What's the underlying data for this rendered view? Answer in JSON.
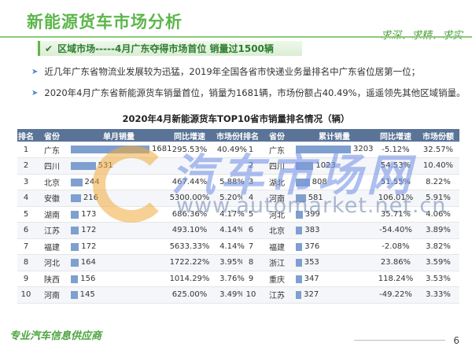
{
  "page": {
    "title": "新能源货车市场分析",
    "slogan": "求深、求精、求实",
    "section_title": "区域市场-----4月广东夺得市场首位 销量过1500辆",
    "section_icon": "check-icon",
    "bullets": [
      "近几年广东省物流业发展较为迅猛，2019年全国各省市快递业务量排名中广东省位居第一位；",
      "2020年4月广东省新能源货车销量首位，销量为1681辆，市场份额占40.49%，遥遥领先其他区域销量。"
    ],
    "footer_brand": "专业汽车信息供应商",
    "page_number": "6"
  },
  "watermark": {
    "name": "汽车市场网",
    "url": "www.automarket.net.cn",
    "logo_color": "#f0aa3c"
  },
  "colors": {
    "accent_green": "#5cb64a",
    "table_header": "#5a7396",
    "bar": "#7f9fcf"
  },
  "chart_data": {
    "type": "table",
    "title": "2020年4月新能源货车TOP10省市销量排名情况（辆）",
    "monthly": {
      "headers": [
        "排名",
        "省份",
        "单月销量",
        "同比增速",
        "市场份额"
      ],
      "rows": [
        {
          "rank": "1",
          "province": "广东",
          "sales": 1681,
          "growth": "295.53%",
          "share": "40.49%"
        },
        {
          "rank": "2",
          "province": "四川",
          "sales": 531,
          "growth": "",
          "share": ""
        },
        {
          "rank": "3",
          "province": "北京",
          "sales": 244,
          "growth": "467.44%",
          "share": "5.88%"
        },
        {
          "rank": "4",
          "province": "安徽",
          "sales": 216,
          "growth": "5300.00%",
          "share": "5.20%"
        },
        {
          "rank": "5",
          "province": "湖南",
          "sales": 173,
          "growth": "686.36%",
          "share": "4.17%"
        },
        {
          "rank": "6",
          "province": "江苏",
          "sales": 172,
          "growth": "493.10%",
          "share": "4.14%"
        },
        {
          "rank": "7",
          "province": "福建",
          "sales": 172,
          "growth": "5633.33%",
          "share": "4.14%"
        },
        {
          "rank": "8",
          "province": "河北",
          "sales": 164,
          "growth": "1722.22%",
          "share": "3.95%"
        },
        {
          "rank": "9",
          "province": "陕西",
          "sales": 156,
          "growth": "1014.29%",
          "share": "3.76%"
        },
        {
          "rank": "10",
          "province": "河南",
          "sales": 145,
          "growth": "625.00%",
          "share": "3.49%"
        }
      ]
    },
    "cumulative": {
      "headers": [
        "排名",
        "省份",
        "累计销量",
        "同比增速",
        "市场份额"
      ],
      "rows": [
        {
          "rank": "1",
          "province": "广东",
          "sales": 3203,
          "growth": "-5.12%",
          "share": "32.57%"
        },
        {
          "rank": "2",
          "province": "四川",
          "sales": 1023,
          "growth": "54.53%",
          "share": "10.40%"
        },
        {
          "rank": "3",
          "province": "湖北",
          "sales": 808,
          "growth": "51.55%",
          "share": "8.22%"
        },
        {
          "rank": "4",
          "province": "河南",
          "sales": 581,
          "growth": "106.01%",
          "share": "5.91%"
        },
        {
          "rank": "5",
          "province": "河北",
          "sales": 399,
          "growth": "35.71%",
          "share": "4.06%"
        },
        {
          "rank": "6",
          "province": "北京",
          "sales": 383,
          "growth": "-54.40%",
          "share": "3.89%"
        },
        {
          "rank": "7",
          "province": "福建",
          "sales": 376,
          "growth": "-2.08%",
          "share": "3.82%"
        },
        {
          "rank": "8",
          "province": "浙江",
          "sales": 353,
          "growth": "23.86%",
          "share": "3.59%"
        },
        {
          "rank": "9",
          "province": "重庆",
          "sales": 347,
          "growth": "118.24%",
          "share": "3.53%"
        },
        {
          "rank": "10",
          "province": "江苏",
          "sales": 327,
          "growth": "-49.22%",
          "share": "3.33%"
        }
      ]
    }
  }
}
